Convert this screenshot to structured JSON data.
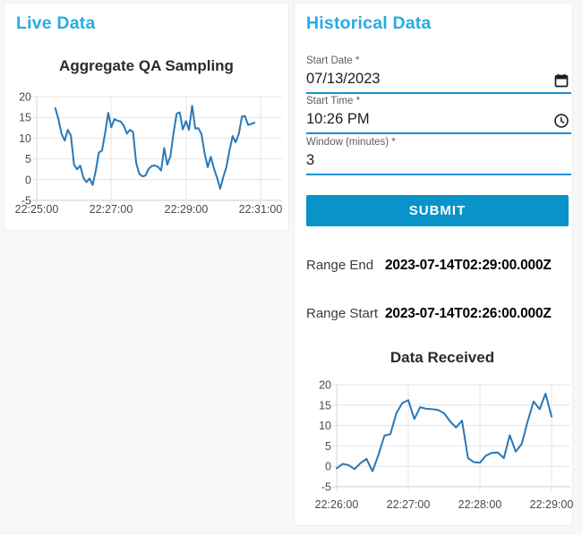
{
  "colors": {
    "accent_heading": "#29ABE2",
    "submit_button": "#0A93C9",
    "input_underline": "#1791D2",
    "chart_line": "#2878B8",
    "page_background": "#F7F7F7",
    "grid_line": "#E4E4E4"
  },
  "live_panel": {
    "title": "Live Data"
  },
  "historical_panel": {
    "title": "Historical Data",
    "fields": [
      {
        "label": "Start Date *",
        "value": "07/13/2023",
        "icon": "calendar-icon"
      },
      {
        "label": "Start Time *",
        "value": "10:26 PM",
        "icon": "clock-icon"
      },
      {
        "label": "Window (minutes) *",
        "value": "3",
        "icon": ""
      }
    ],
    "submit_label": "SUBMIT",
    "range_end": {
      "label": "Range End",
      "value": "2023-07-14T02:29:00.000Z"
    },
    "range_start": {
      "label": "Range Start",
      "value": "2023-07-14T02:26:00.000Z"
    }
  },
  "chart_data": [
    {
      "id": "live",
      "type": "line",
      "title": "Aggregate QA Sampling",
      "x_ticks": [
        "22:25:00",
        "22:27:00",
        "22:29:00",
        "22:31:00"
      ],
      "tick_interval_s": 120,
      "x_start": "22:25:30",
      "start_offset_s": 30,
      "step_s": 5,
      "y_ticks": [
        20,
        15,
        10,
        5,
        0,
        -5
      ],
      "ylim": [
        -5,
        20
      ],
      "grid": true,
      "legend": false,
      "line_color": "#2878B8",
      "values": [
        17.2,
        14.5,
        11.0,
        9.4,
        12.0,
        10.6,
        3.6,
        2.5,
        3.4,
        0.5,
        -0.6,
        0.3,
        -1.3,
        2.2,
        6.5,
        7.0,
        11.2,
        16.1,
        12.6,
        14.6,
        14.2,
        14.0,
        13.0,
        11.1,
        12.0,
        11.5,
        4.0,
        1.4,
        0.8,
        1.0,
        2.6,
        3.3,
        3.4,
        3.1,
        2.2,
        7.6,
        3.6,
        5.6,
        11.2,
        15.9,
        16.2,
        12.1,
        14.1,
        12.0,
        17.8,
        12.3,
        12.4,
        11.0,
        6.4,
        3.0,
        5.5,
        2.7,
        0.5,
        -2.2,
        0.6,
        3.0,
        7.0,
        10.5,
        9.0,
        11.0,
        15.2,
        15.3,
        13.2,
        13.4,
        13.7
      ]
    },
    {
      "id": "received",
      "type": "line",
      "title": "Data Received",
      "x_ticks": [
        "22:26:00",
        "22:27:00",
        "22:28:00",
        "22:29:00"
      ],
      "tick_interval_s": 60,
      "x_start": "22:26:00",
      "start_offset_s": 0,
      "step_s": 5,
      "y_ticks": [
        20,
        15,
        10,
        5,
        0,
        -5
      ],
      "ylim": [
        -5,
        20
      ],
      "grid": true,
      "legend": false,
      "line_color": "#2878B8",
      "values": [
        -0.5,
        0.6,
        0.3,
        -0.7,
        0.8,
        1.8,
        -1.2,
        2.8,
        7.5,
        7.9,
        13.0,
        15.5,
        16.2,
        11.6,
        14.5,
        14.1,
        14.0,
        13.8,
        13.0,
        11.0,
        9.5,
        11.2,
        2.0,
        1.0,
        0.9,
        2.6,
        3.3,
        3.4,
        2.0,
        7.6,
        3.6,
        5.5,
        11.0,
        15.9,
        14.0,
        17.8,
        12.2
      ]
    }
  ]
}
